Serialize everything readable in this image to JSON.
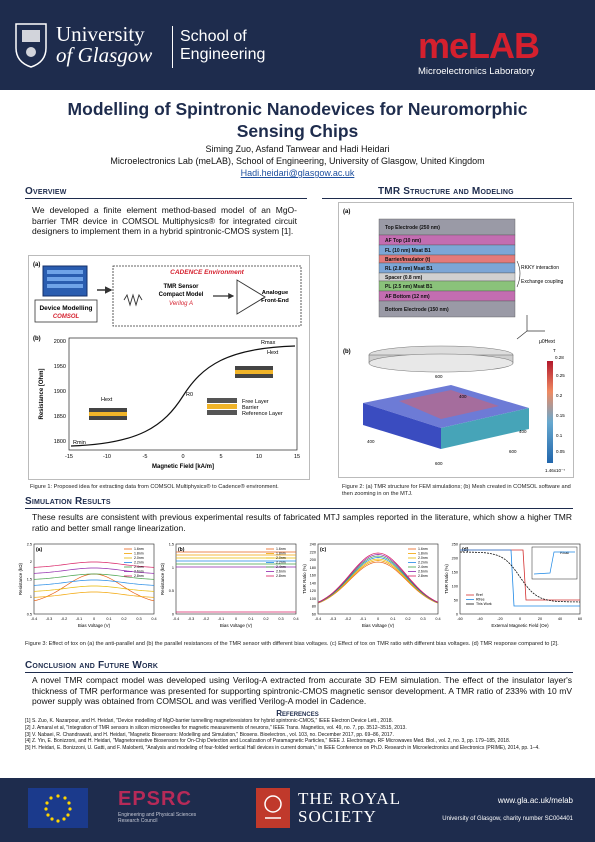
{
  "header": {
    "university_line1": "University",
    "university_line2": "of Glasgow",
    "school_line1": "School of",
    "school_line2": "Engineering",
    "lab_logo_left": "me",
    "lab_logo_right": "LAB",
    "lab_subtitle": "Microelectronics Laboratory"
  },
  "title": {
    "line1": "Modelling of Spintronic Nanodevices for Neuromorphic",
    "line2": "Sensing Chips",
    "authors": "Siming Zuo, Asfand Tanwear and Hadi Heidari",
    "affiliation": "Microelectronics Lab (meLAB), School of Engineering, University of Glasgow, United Kingdom",
    "email": "Hadi.heidari@glasgow.ac.uk"
  },
  "sections": {
    "overview": "Overview",
    "tmr": "TMR Structure and Modeling",
    "simulation": "Simulation Results",
    "conclusion": "Conclusion and Future Work",
    "references": "References"
  },
  "overview_text": "We developed a finite element method-based model of an MgO-barrier TMR device in COMSOL Multiphysics® for integrated circuit designers to implement them in a hybrid spintronic-CMOS system [1].",
  "fig1": {
    "label_a": "(a)",
    "label_b": "(b)",
    "cadence": "CADENCE Environment",
    "device_modelling": "Device Modelling",
    "comsol": "COMSOL",
    "tmr_model_l1": "TMR Sensor",
    "tmr_model_l2": "Compact Model",
    "veriloga": "Verilog A",
    "frontend_l1": "Analogue",
    "frontend_l2": "Front-End",
    "xlabel": "Magnetic Field [kA/m]",
    "ylabel": "Resistance [Ohm]",
    "rmax": "Rmax",
    "rmin": "Rmin",
    "r0": "R0",
    "hext1": "Hext",
    "hext2": "Hext",
    "legend": [
      "Free Layer",
      "Barrier",
      "Reference Layer"
    ],
    "caption": "Figure 1: Proposed idea for extracting data from COMSOL Multiphysics® to Cadence® environment."
  },
  "fig2": {
    "label_a": "(a)",
    "label_b": "(b)",
    "layers": [
      {
        "name": "Top Electrode (250 nm)",
        "color": "#9a9aa6"
      },
      {
        "name": "AF Top (10 nm)",
        "color": "#c36db1"
      },
      {
        "name": "FL (10 nm)   Msat   B1",
        "color": "#7ca6d6"
      },
      {
        "name": "Barrier/Insulator (t)",
        "color": "#e37a7a"
      },
      {
        "name": "RL (2.8 nm)   Msat   B1",
        "color": "#7ca6d6"
      },
      {
        "name": "Spacer (0.8 nm)",
        "color": "#d0d0d0"
      },
      {
        "name": "PL (2.5 nm)   Msat   B1",
        "color": "#8ac27a"
      },
      {
        "name": "AF Bottom (12 nm)",
        "color": "#c36db1"
      },
      {
        "name": "Bottom Electrode (150 nm)",
        "color": "#9a9aa6"
      }
    ],
    "rkky": "RKKY interaction",
    "exchange": "Exchange coupling",
    "field": "μ0Hext",
    "colorbar_title": "T",
    "colorbar_max": "0.28",
    "colorbar_ticks": [
      "0.25",
      "0.2",
      "0.15",
      "0.1",
      "0.05"
    ],
    "colorbar_min": "1.46x10⁻⁷",
    "caption": "Figure 2: (a) TMR structure for FEM simulations; (b) Mesh created in COMSOL software and then zooming in on the MTJ."
  },
  "simulation_text": "These results are consistent with previous experimental results of fabricated MTJ samples reported in the literature, which show a higher TMR ratio and better small range linearization.",
  "fig3": {
    "panels": [
      {
        "label": "(a)",
        "ylabel": "Resistance (kΩ)",
        "xlabel": "Bias Voltage (V)",
        "xticks": [
          "-0.4",
          "-0.3",
          "-0.2",
          "-0.1",
          "0",
          "0.1",
          "0.2",
          "0.3",
          "0.4"
        ],
        "yticks": [
          "2.5",
          "2",
          "1.5",
          "1",
          "0.5"
        ]
      },
      {
        "label": "(b)",
        "ylabel": "Resistance (kΩ)",
        "xlabel": "Bias Voltage (V)",
        "xticks": [
          "-0.4",
          "-0.3",
          "-0.2",
          "-0.1",
          "0",
          "0.1",
          "0.2",
          "0.3",
          "0.4"
        ],
        "yticks": [
          "1.5",
          "1",
          "0.5",
          "0"
        ]
      },
      {
        "label": "(c)",
        "ylabel": "TMR Ratio (%)",
        "xlabel": "Bias Voltage (V)",
        "xticks": [
          "-0.4",
          "-0.3",
          "-0.2",
          "-0.1",
          "0",
          "0.1",
          "0.2",
          "0.3",
          "0.4"
        ],
        "yticks": [
          "240",
          "220",
          "200",
          "180",
          "160",
          "140",
          "120",
          "100",
          "80",
          "60"
        ]
      },
      {
        "label": "(d)",
        "ylabel": "TMR Ratio (%)",
        "xlabel": "External Magnetic Field (Oe)",
        "xticks": [
          "-60",
          "-40",
          "-20",
          "0",
          "20",
          "40",
          "60"
        ],
        "yticks": [
          "250",
          "200",
          "150",
          "100",
          "50",
          "0"
        ]
      }
    ],
    "legend_tox": [
      "1.6nm",
      "1.8nm",
      "2.0nm",
      "2.2nm",
      "2.4nm",
      "2.6nm",
      "2.8nm"
    ],
    "legend_d": [
      "Rref",
      "Rfree",
      "This Work"
    ],
    "inset_title": "Rhall",
    "caption": "Figure 3: Effect of tox on (a) the anti-parallel and (b) the parallel resistances of the TMR sensor with different bias voltages. (c) Effect of tox on TMR ratio with different bias voltages. (d) TMR response compared to [2]."
  },
  "conclusion_text": "A novel TMR compact model was developed using Verilog-A extracted from accurate 3D FEM simulation. The effect of the insulator layer's thickness of TMR performance was presented for supporting spintronic-CMOS magnetic sensor development. A TMR ratio of 233% with 10 mV power supply was obtained from COMSOL and was verified Verilog-A model in Cadence.",
  "references": [
    "[1] S. Zuo, K. Nazarpour, and H. Heidari, \"Device modelling of MgO-barrier tunnelling magnetoresistors for hybrid spintronic-CMOS,\" IEEE Electron Device Lett., 2018.",
    "[2] J. Amaral et al, \"Integration of TMR sensors in silicon microneedles for magnetic measurements of neurons,\" IEEE Trans. Magnetics, vol. 49, no. 7, pp. 3512–3515, 2013.",
    "[3] V. Nabaei, R. Chandrawati, and H. Heidari, \"Magnetic Biosensors: Modelling and Simulation,\" Biosens. Bioelectron., vol. 103, no. December 2017, pp. 69–86, 2017.",
    "[4] Z. Yin, E. Bonizzoni, and H. Heidari, \"Magnetoresistive Biosensors for On-Chip Detection and Localization of Paramagnetic Particles,\" IEEE J. Electromagn. RF Microwaves Med. Biol., vol. 2, no. 3, pp. 179–185, 2018.",
    "[5] H. Heidari, E. Bonizzoni, U. Gatti, and F. Maloberti, \"Analysis and modeling of four-folded vertical Hall devices in current domain,\" in IEEE Conference on Ph.D. Research in Microelectronics and Electronics (PRIME), 2014, pp. 1–4."
  ],
  "footer": {
    "epsrc": "EPSRC",
    "epsrc_sub1": "Engineering and Physical Sciences",
    "epsrc_sub2": "Research Council",
    "royal1": "THE ROYAL",
    "royal2": "SOCIETY",
    "url": "www.gla.ac.uk/melab",
    "charity": "University of Glasgow, charity number SC004401"
  },
  "colors": {
    "navy": "#1e2c4d",
    "red": "#d5202e"
  }
}
